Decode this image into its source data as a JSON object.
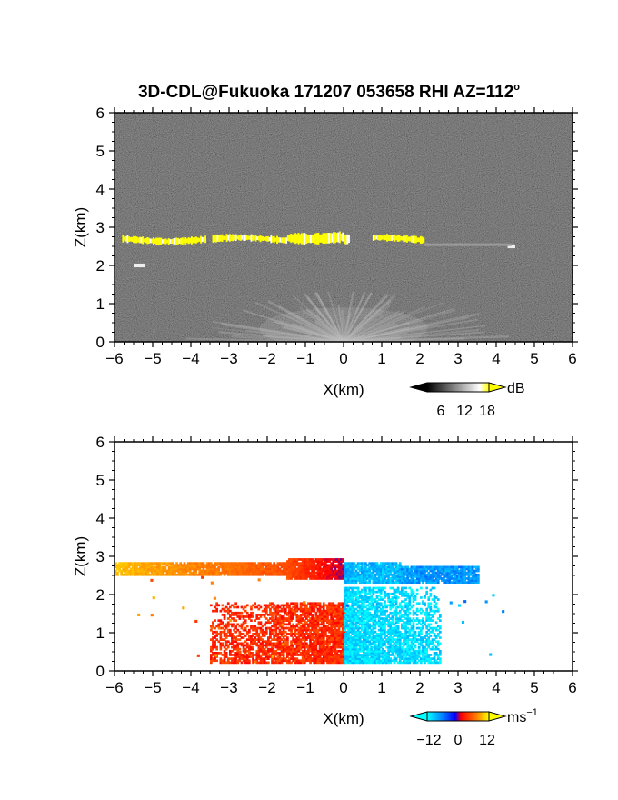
{
  "title_main": "3D-CDL@Fukuoka 171207 053658 RHI AZ=112",
  "title_deg": "o",
  "chart_data": [
    {
      "type": "heatmap",
      "panel": "backscatter",
      "xlabel": "X(km)",
      "ylabel": "Z(km)",
      "xlim": [
        -6,
        6
      ],
      "ylim": [
        0,
        6
      ],
      "x_ticks": [
        "−6",
        "−5",
        "−4",
        "−3",
        "−2",
        "−1",
        "0",
        "1",
        "2",
        "3",
        "4",
        "5",
        "6"
      ],
      "y_ticks": [
        "0",
        "1",
        "2",
        "3",
        "4",
        "5",
        "6"
      ],
      "background": "noise (dark gray)",
      "features": [
        {
          "kind": "strong layer (yellow)",
          "x": [
            -5.8,
            2.1
          ],
          "z": [
            2.55,
            2.85
          ]
        },
        {
          "kind": "weak echo",
          "x": [
            -5.5,
            -5.2
          ],
          "z": [
            1.95,
            2.05
          ]
        },
        {
          "kind": "weak echo",
          "x": [
            4.3,
            4.5
          ],
          "z": [
            2.45,
            2.55
          ]
        },
        {
          "kind": "boundary layer fan (light gray)",
          "x": [
            -3.5,
            4.5
          ],
          "z": [
            0,
            2.4
          ]
        }
      ],
      "colorbar": {
        "unit": "dB",
        "ticks": [
          "6",
          "12",
          "18"
        ],
        "range": [
          0,
          20
        ]
      }
    },
    {
      "type": "heatmap",
      "panel": "doppler_velocity",
      "xlabel": "X(km)",
      "ylabel": "Z(km)",
      "xlim": [
        -6,
        6
      ],
      "ylim": [
        0,
        6
      ],
      "x_ticks": [
        "−6",
        "−5",
        "−4",
        "−3",
        "−2",
        "−1",
        "0",
        "1",
        "2",
        "3",
        "4",
        "5",
        "6"
      ],
      "y_ticks": [
        "0",
        "1",
        "2",
        "3",
        "4",
        "5",
        "6"
      ],
      "features": [
        {
          "kind": "layer",
          "x": [
            -6,
            -1.5
          ],
          "z": [
            2.5,
            2.8
          ],
          "velocity": 12
        },
        {
          "kind": "layer",
          "x": [
            -1.5,
            0
          ],
          "z": [
            2.4,
            2.9
          ],
          "velocity": 6
        },
        {
          "kind": "layer",
          "x": [
            0,
            1.5
          ],
          "z": [
            2.3,
            2.8
          ],
          "velocity": -11
        },
        {
          "kind": "layer",
          "x": [
            1.5,
            3.5
          ],
          "z": [
            2.3,
            2.7
          ],
          "velocity": -9
        },
        {
          "kind": "lower",
          "x": [
            -3.5,
            0
          ],
          "z": [
            0.2,
            1.8
          ],
          "velocity": 4
        },
        {
          "kind": "lower",
          "x": [
            0,
            2.5
          ],
          "z": [
            0.2,
            2.2
          ],
          "velocity": -13
        }
      ],
      "colorbar": {
        "unit": "ms",
        "unit_exp": "−1",
        "ticks": [
          "−12",
          "0",
          "12"
        ],
        "range": [
          -15,
          15
        ]
      }
    }
  ]
}
